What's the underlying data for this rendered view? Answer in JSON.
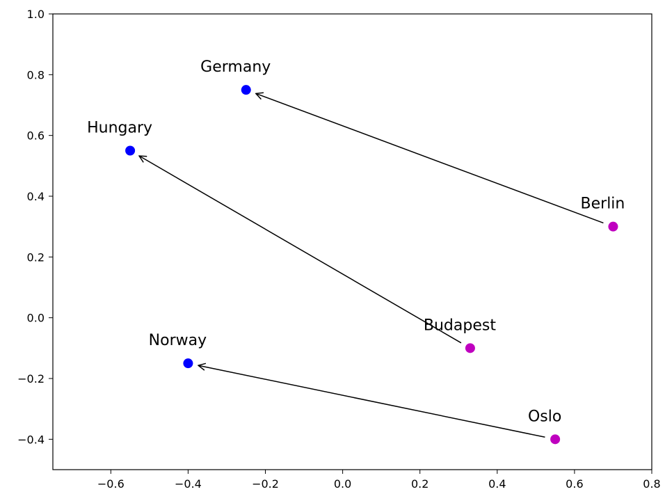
{
  "chart_data": {
    "type": "scatter",
    "title": "",
    "xlabel": "",
    "ylabel": "",
    "xlim": [
      -0.75,
      0.8
    ],
    "ylim": [
      -0.5,
      1.0
    ],
    "x_ticks": [
      {
        "value": -0.6,
        "label": "−0.6"
      },
      {
        "value": -0.4,
        "label": "−0.4"
      },
      {
        "value": -0.2,
        "label": "−0.2"
      },
      {
        "value": 0.0,
        "label": "0.0"
      },
      {
        "value": 0.2,
        "label": "0.2"
      },
      {
        "value": 0.4,
        "label": "0.4"
      },
      {
        "value": 0.6,
        "label": "0.6"
      },
      {
        "value": 0.8,
        "label": "0.8"
      }
    ],
    "y_ticks": [
      {
        "value": -0.4,
        "label": "−0.4"
      },
      {
        "value": -0.2,
        "label": "−0.2"
      },
      {
        "value": 0.0,
        "label": "0.0"
      },
      {
        "value": 0.2,
        "label": "0.2"
      },
      {
        "value": 0.4,
        "label": "0.4"
      },
      {
        "value": 0.6,
        "label": "0.6"
      },
      {
        "value": 0.8,
        "label": "0.8"
      },
      {
        "value": 1.0,
        "label": "1.0"
      }
    ],
    "grid": false,
    "points": [
      {
        "label": "Germany",
        "x": -0.25,
        "y": 0.75,
        "color": "#0000ff"
      },
      {
        "label": "Hungary",
        "x": -0.55,
        "y": 0.55,
        "color": "#0000ff"
      },
      {
        "label": "Norway",
        "x": -0.4,
        "y": -0.15,
        "color": "#0000ff"
      },
      {
        "label": "Berlin",
        "x": 0.7,
        "y": 0.3,
        "color": "#bf00bf"
      },
      {
        "label": "Budapest",
        "x": 0.33,
        "y": -0.1,
        "color": "#bf00bf"
      },
      {
        "label": "Oslo",
        "x": 0.55,
        "y": -0.4,
        "color": "#bf00bf"
      }
    ],
    "arrows": [
      {
        "from": "Berlin",
        "to": "Germany",
        "color": "#000000"
      },
      {
        "from": "Budapest",
        "to": "Hungary",
        "color": "#000000"
      },
      {
        "from": "Oslo",
        "to": "Norway",
        "color": "#000000"
      }
    ]
  }
}
